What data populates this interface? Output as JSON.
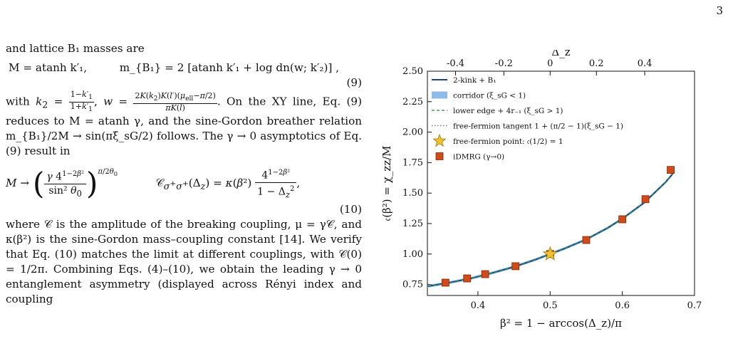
{
  "page_number": "3",
  "text": {
    "intro": "and lattice B₁ masses are",
    "eq9_left": "M = atanh k′₁,",
    "eq9_right": "m_{B₁} = 2 [atanh k′₁ + log dn(w; k′₂)] ,",
    "eq9_num": "(9)",
    "p2_a": "with",
    "p2_b": "On the XY line, Eq. (9) reduces to M = atanh γ, and the sine-Gordon breather relation m_{B₁}/2M → sin(πξ_sG/2) follows. The γ → 0 asymptotics of Eq. (9) result in",
    "eq10_num": "(10)",
    "p3": "where 𝒞 is the amplitude of the breaking coupling, μ = γ𝒞, and κ(β²) is the sine-Gordon mass–coupling constant [14]. We verify that Eq. (10) matches the limit at different couplings, with 𝒞(0) = 1/2π. Combining Eqs. (4)–(10), we obtain the leading γ → 0 entanglement asymmetry (displayed across Rényi index and coupling"
  },
  "chart_data": {
    "type": "line",
    "xlabel": "β² = 1 − arccos(Δ_z)/π",
    "ylabel": "𝔠(β²) = χ_zz/M",
    "top_xlabel": "Δ_z",
    "xlim": [
      0.33,
      0.7
    ],
    "ylim": [
      0.66,
      2.5
    ],
    "xticks": [
      0.4,
      0.5,
      0.6,
      0.7
    ],
    "xtick_labels": [
      "0.4",
      "0.5",
      "0.6",
      "0.7"
    ],
    "yticks": [
      0.75,
      1.0,
      1.25,
      1.5,
      1.75,
      2.0,
      2.25,
      2.5
    ],
    "ytick_labels": [
      "0.75",
      "1.00",
      "1.25",
      "1.50",
      "1.75",
      "2.00",
      "2.25",
      "2.50"
    ],
    "top_ticks_delta": [
      -0.4,
      -0.2,
      0,
      0.2,
      0.4
    ],
    "top_tick_labels": [
      "-0.4",
      "-0.2",
      "0",
      "0.2",
      "0.4"
    ],
    "legend_placement": "top-left",
    "legend": [
      {
        "label": "2-kink + B₁",
        "style": "line",
        "color": "#1f3f8f"
      },
      {
        "label": "corridor (ξ_sG < 1)",
        "style": "patch",
        "color": "#8fbbe8"
      },
      {
        "label": "lower edge + 4r₋₁ (ξ_sG > 1)",
        "style": "dashed",
        "color": "#2a8a3a"
      },
      {
        "label": "free-fermion tangent 1 + (π/2 − 1)(ξ_sG − 1)",
        "style": "dotted",
        "color": "#777777"
      },
      {
        "label": "free-fermion point: 𝔠(1/2) = 1",
        "style": "star",
        "color": "#f2c12e"
      },
      {
        "label": "iDMRG (γ→0)",
        "style": "square",
        "color": "#d04a1a"
      }
    ],
    "series": [
      {
        "name": "2-kink + B₁",
        "kind": "line",
        "x": [
          0.33,
          0.36,
          0.39,
          0.42,
          0.45,
          0.48,
          0.5,
          0.52,
          0.55,
          0.58,
          0.6,
          0.63,
          0.66,
          0.67
        ],
        "y": [
          0.735,
          0.765,
          0.8,
          0.845,
          0.895,
          0.955,
          1.0,
          1.045,
          1.12,
          1.215,
          1.29,
          1.42,
          1.59,
          1.66
        ]
      },
      {
        "name": "iDMRG (γ→0)",
        "kind": "points",
        "x": [
          0.355,
          0.385,
          0.41,
          0.452,
          0.5,
          0.55,
          0.6,
          0.632,
          0.667
        ],
        "y": [
          0.765,
          0.8,
          0.835,
          0.9,
          1.0,
          1.115,
          1.285,
          1.45,
          1.69
        ]
      },
      {
        "name": "free-fermion point",
        "kind": "star",
        "x": [
          0.5
        ],
        "y": [
          1.0
        ]
      }
    ]
  }
}
